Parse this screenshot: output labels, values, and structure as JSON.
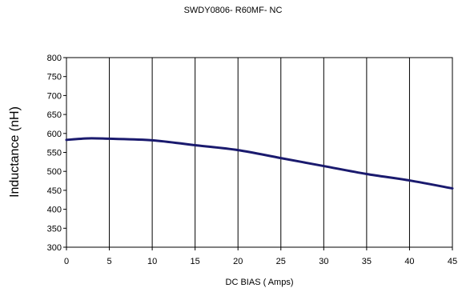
{
  "chart_data": {
    "type": "line",
    "title": "SWDY0806- R60MF- NC",
    "xlabel": "DC BIAS ( Amps)",
    "ylabel": "Inductance (nH)",
    "xlim": [
      0,
      45
    ],
    "ylim": [
      300,
      800
    ],
    "x_ticks": [
      "0",
      "5",
      "10",
      "15",
      "20",
      "25",
      "30",
      "35",
      "40",
      "45"
    ],
    "y_ticks": [
      "300",
      "350",
      "400",
      "450",
      "500",
      "550",
      "600",
      "650",
      "700",
      "750",
      "800"
    ],
    "grid": "vertical",
    "legend": "none",
    "series": [
      {
        "color": "#1a1a6e",
        "x": [
          0,
          2.5,
          5,
          10,
          15,
          20,
          25,
          30,
          35,
          40,
          45
        ],
        "y": [
          583,
          587,
          586,
          582,
          569,
          556,
          535,
          514,
          493,
          476,
          455
        ]
      }
    ]
  }
}
